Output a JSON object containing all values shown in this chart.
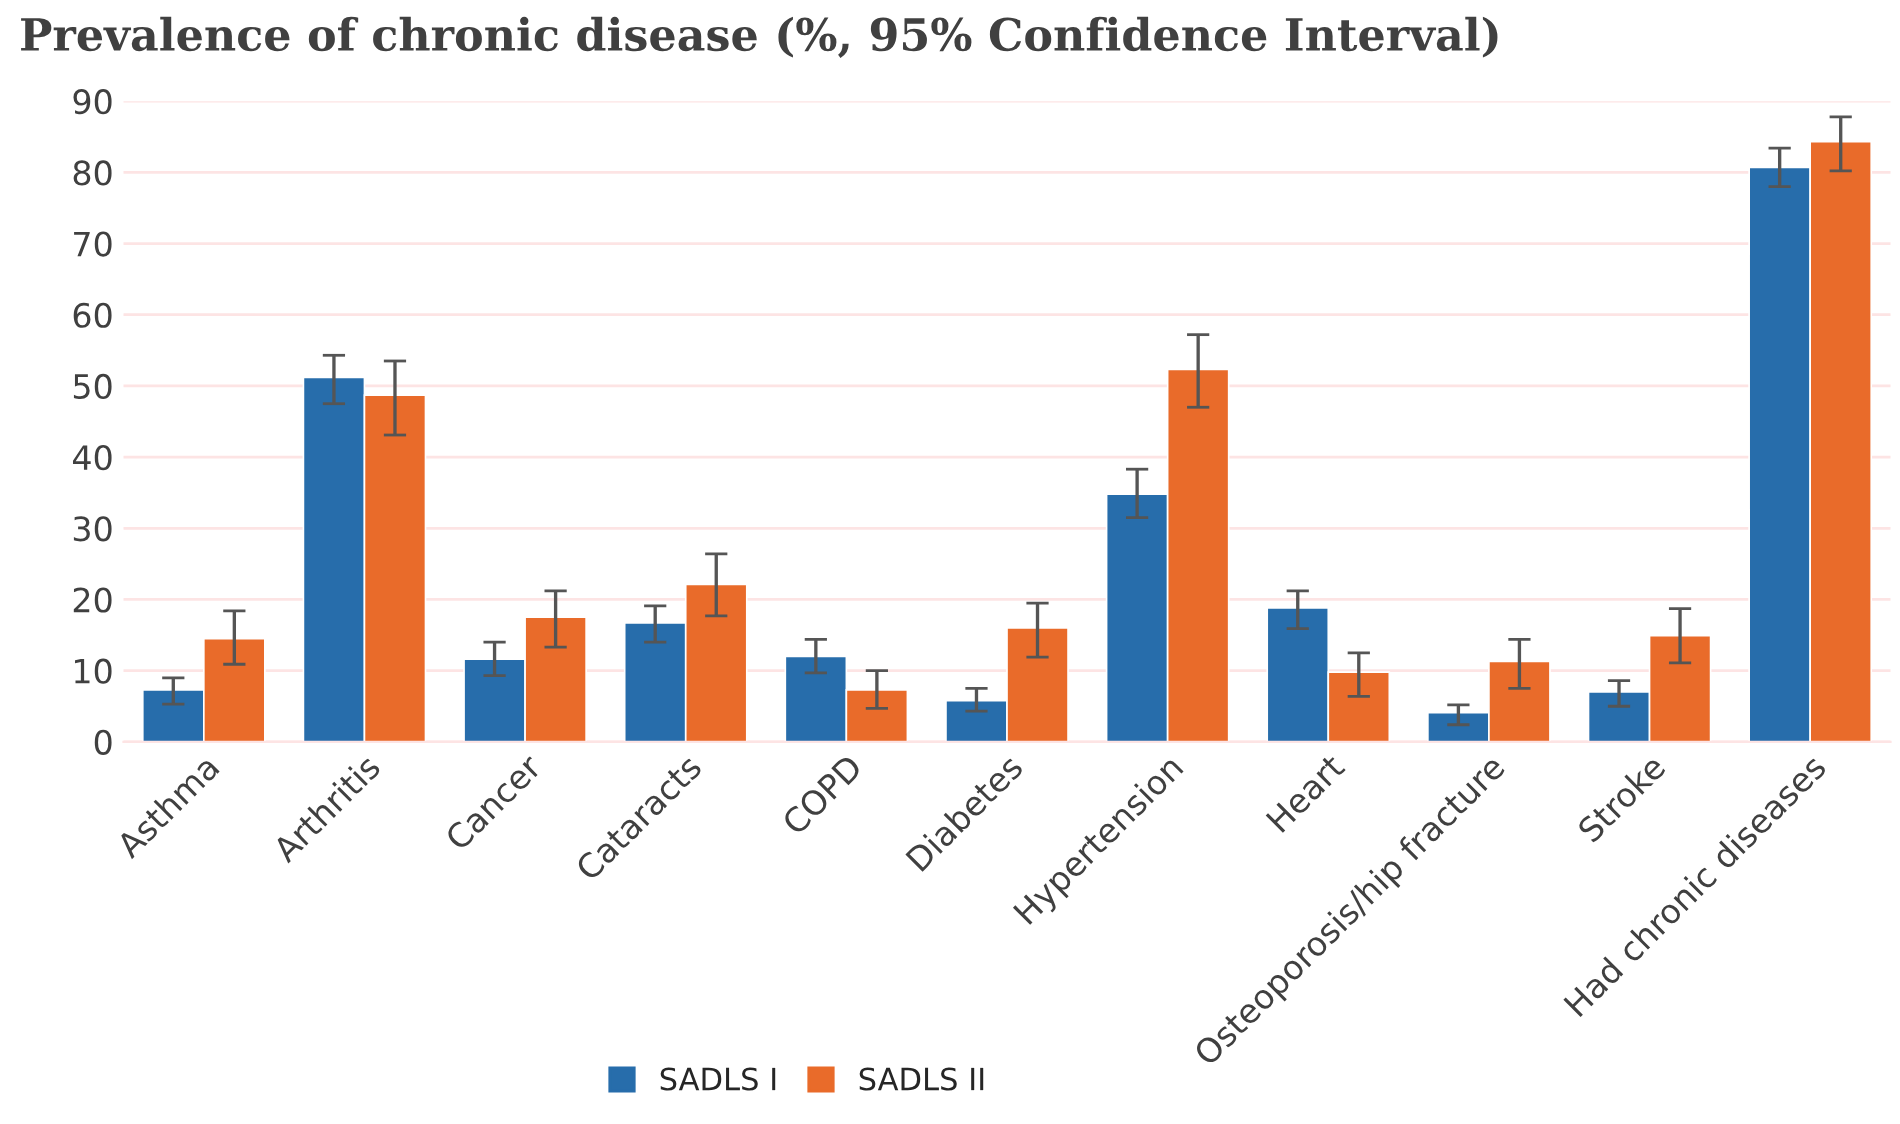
{
  "chart_data": {
    "type": "bar",
    "title": "Prevalence of chronic disease (%, 95% Confidence Interval)",
    "categories": [
      "Asthma",
      "Arthritis",
      "Cancer",
      "Cataracts",
      "COPD",
      "Diabetes",
      "Hypertension",
      "Heart",
      "Osteoporosis/hip fracture",
      "Stroke",
      "Had chronic diseases"
    ],
    "series": [
      {
        "name": "SADLS I",
        "color": "#276dab",
        "values": [
          7.3,
          51.2,
          11.6,
          16.7,
          12.0,
          5.8,
          34.8,
          18.8,
          4.1,
          7.0,
          80.7
        ],
        "errors": [
          [
            5.3,
            9.0
          ],
          [
            47.5,
            54.3
          ],
          [
            9.3,
            14.0
          ],
          [
            14.0,
            19.1
          ],
          [
            9.7,
            14.4
          ],
          [
            4.3,
            7.5
          ],
          [
            31.5,
            38.3
          ],
          [
            15.9,
            21.2
          ],
          [
            2.4,
            5.2
          ],
          [
            5.0,
            8.6
          ],
          [
            78.0,
            83.4
          ]
        ]
      },
      {
        "name": "SADLS II",
        "color": "#e96b2a",
        "values": [
          14.5,
          48.7,
          17.5,
          22.1,
          7.3,
          16.0,
          52.3,
          9.8,
          11.3,
          14.9,
          84.3
        ],
        "errors": [
          [
            10.9,
            18.4
          ],
          [
            43.1,
            53.5
          ],
          [
            13.3,
            21.2
          ],
          [
            17.7,
            26.4
          ],
          [
            4.7,
            10.0
          ],
          [
            11.9,
            19.5
          ],
          [
            47.0,
            57.2
          ],
          [
            6.4,
            12.5
          ],
          [
            7.5,
            14.4
          ],
          [
            11.1,
            18.7
          ],
          [
            80.2,
            87.8
          ]
        ]
      }
    ],
    "ylim": [
      0,
      90
    ],
    "yticks": [
      0,
      10,
      20,
      30,
      40,
      50,
      60,
      70,
      80,
      90
    ],
    "grid": "y",
    "legend": "bottom"
  }
}
